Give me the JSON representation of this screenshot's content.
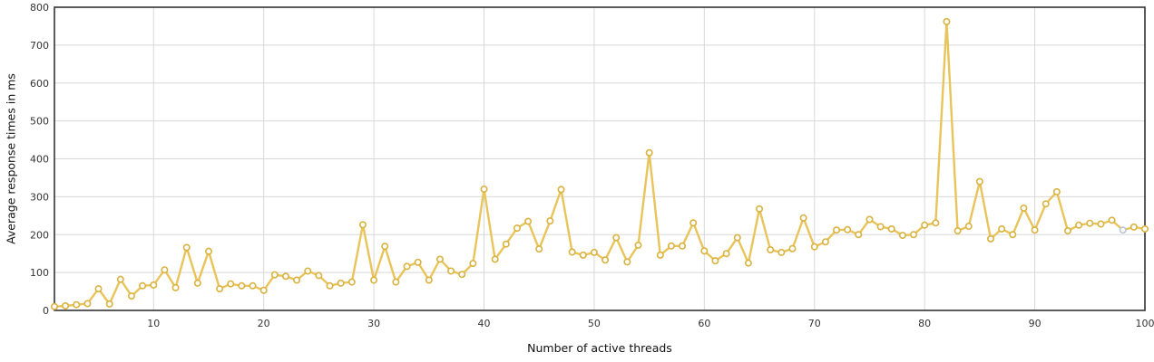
{
  "chart_data": {
    "type": "line",
    "title": "",
    "xlabel": "Number of active threads",
    "ylabel": "Average response times in ms",
    "xlim": [
      1,
      100
    ],
    "ylim": [
      0,
      800
    ],
    "x_ticks": [
      10,
      20,
      30,
      40,
      50,
      60,
      70,
      80,
      90,
      100
    ],
    "y_ticks": [
      0,
      100,
      200,
      300,
      400,
      500,
      600,
      700,
      800
    ],
    "grid": true,
    "legend": "none",
    "colors": {
      "line": "#e8c45a",
      "marker_stroke": "#d9b23f",
      "highlight_point": "#b9c6d3"
    },
    "highlighted_x": 98,
    "series": [
      {
        "x": [
          1,
          2,
          3,
          4,
          5,
          6,
          7,
          8,
          9,
          10,
          11,
          12,
          13,
          14,
          15,
          16,
          17,
          18,
          19,
          20,
          21,
          22,
          23,
          24,
          25,
          26,
          27,
          28,
          29,
          30,
          31,
          32,
          33,
          34,
          35,
          36,
          37,
          38,
          39,
          40,
          41,
          42,
          43,
          44,
          45,
          46,
          47,
          48,
          49,
          50,
          51,
          52,
          53,
          54,
          55,
          56,
          57,
          58,
          59,
          60,
          61,
          62,
          63,
          64,
          65,
          66,
          67,
          68,
          69,
          70,
          71,
          72,
          73,
          74,
          75,
          76,
          77,
          78,
          79,
          80,
          81,
          82,
          83,
          84,
          85,
          86,
          87,
          88,
          89,
          90,
          91,
          92,
          93,
          94,
          95,
          96,
          97,
          98,
          99,
          100
        ],
        "y": [
          10,
          12,
          15,
          18,
          57,
          17,
          82,
          38,
          65,
          67,
          107,
          60,
          166,
          72,
          156,
          57,
          70,
          65,
          65,
          53,
          94,
          90,
          80,
          104,
          92,
          65,
          72,
          75,
          226,
          80,
          169,
          75,
          116,
          127,
          80,
          135,
          104,
          95,
          124,
          320,
          135,
          175,
          217,
          235,
          162,
          236,
          319,
          154,
          146,
          153,
          133,
          192,
          128,
          172,
          416,
          146,
          170,
          170,
          231,
          157,
          131,
          150,
          192,
          125,
          268,
          160,
          153,
          163,
          244,
          168,
          181,
          212,
          213,
          200,
          240,
          221,
          215,
          198,
          200,
          225,
          231,
          762,
          210,
          222,
          340,
          189,
          215,
          200,
          270,
          212,
          281,
          313,
          210,
          225,
          230,
          228,
          238,
          212,
          220,
          215
        ]
      }
    ]
  }
}
